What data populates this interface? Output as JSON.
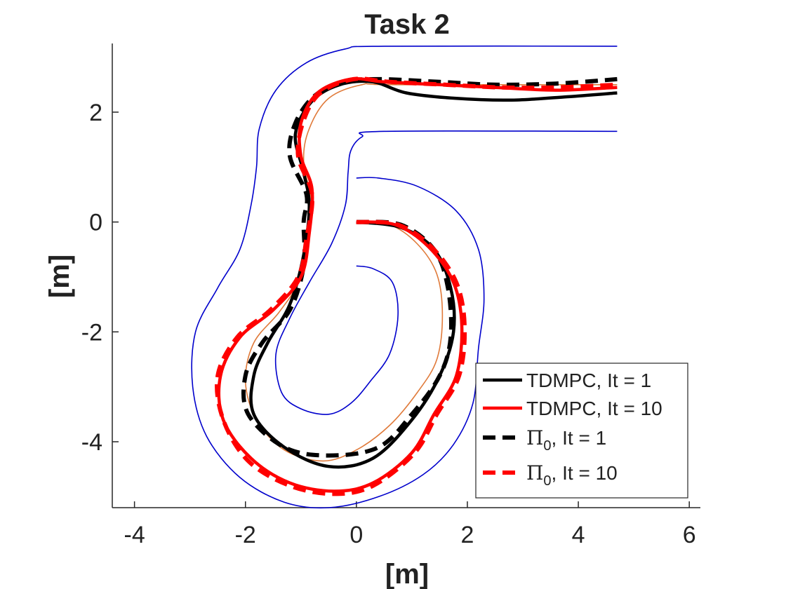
{
  "chart_data": {
    "type": "line",
    "title": "Task 2",
    "xlabel": "[m]",
    "ylabel": "[m]",
    "xlim": [
      -4.4,
      6.2
    ],
    "ylim": [
      -5.2,
      3.25
    ],
    "xticks": [
      -4,
      -2,
      0,
      2,
      4,
      6
    ],
    "yticks": [
      -4,
      -2,
      0,
      2
    ],
    "grid": false,
    "legend_position": "bottom-right",
    "track": {
      "color": "#0000cc",
      "outer": [
        [
          4.7,
          3.2
        ],
        [
          0.5,
          3.2
        ],
        [
          -0.2,
          3.15
        ],
        [
          -0.9,
          2.9
        ],
        [
          -1.45,
          2.4
        ],
        [
          -1.75,
          1.7
        ],
        [
          -1.8,
          1.0
        ],
        [
          -1.9,
          0.3
        ],
        [
          -2.1,
          -0.5
        ],
        [
          -2.5,
          -1.2
        ],
        [
          -2.9,
          -2.0
        ],
        [
          -2.95,
          -3.0
        ],
        [
          -2.7,
          -3.9
        ],
        [
          -2.1,
          -4.65
        ],
        [
          -1.3,
          -5.1
        ],
        [
          -0.5,
          -5.2
        ],
        [
          0.4,
          -5.0
        ],
        [
          1.2,
          -4.6
        ],
        [
          1.75,
          -4.05
        ],
        [
          2.1,
          -3.3
        ],
        [
          2.2,
          -2.3
        ],
        [
          2.3,
          -1.4
        ],
        [
          2.2,
          -0.5
        ],
        [
          1.8,
          0.2
        ],
        [
          1.1,
          0.65
        ],
        [
          0.4,
          0.8
        ],
        [
          0.0,
          0.8
        ]
      ],
      "inner_top": [
        [
          4.7,
          1.65
        ],
        [
          0.5,
          1.65
        ],
        [
          0.1,
          1.55
        ],
        [
          -0.1,
          1.3
        ],
        [
          -0.15,
          0.9
        ],
        [
          -0.2,
          0.3
        ],
        [
          -0.45,
          -0.4
        ],
        [
          -0.85,
          -1.1
        ],
        [
          -1.2,
          -1.75
        ],
        [
          -1.45,
          -2.4
        ],
        [
          -1.35,
          -3.1
        ],
        [
          -1.0,
          -3.4
        ],
        [
          -0.5,
          -3.5
        ],
        [
          -0.1,
          -3.3
        ],
        [
          0.25,
          -2.9
        ],
        [
          0.6,
          -2.4
        ],
        [
          0.75,
          -1.7
        ],
        [
          0.65,
          -1.1
        ],
        [
          0.3,
          -0.85
        ],
        [
          0.0,
          -0.8
        ]
      ]
    },
    "centerline": {
      "color": "#e07a3a",
      "points": [
        [
          0.0,
          0.0
        ],
        [
          0.6,
          -0.05
        ],
        [
          1.1,
          -0.4
        ],
        [
          1.45,
          -0.95
        ],
        [
          1.55,
          -1.7
        ],
        [
          1.45,
          -2.5
        ],
        [
          1.1,
          -3.1
        ],
        [
          0.6,
          -3.7
        ],
        [
          0.0,
          -4.15
        ],
        [
          -0.6,
          -4.35
        ],
        [
          -1.3,
          -4.15
        ],
        [
          -1.8,
          -3.6
        ],
        [
          -2.0,
          -2.9
        ],
        [
          -1.85,
          -2.2
        ],
        [
          -1.4,
          -1.65
        ],
        [
          -1.05,
          -1.1
        ],
        [
          -0.9,
          -0.4
        ],
        [
          -0.8,
          0.3
        ],
        [
          -0.95,
          1.1
        ],
        [
          -0.85,
          1.7
        ],
        [
          -0.5,
          2.25
        ],
        [
          0.1,
          2.5
        ],
        [
          0.7,
          2.5
        ],
        [
          4.7,
          2.5
        ]
      ]
    },
    "series": [
      {
        "name": "TDMPC, It = 1",
        "color": "#000000",
        "style": "solid",
        "points": [
          [
            0.0,
            0.0
          ],
          [
            0.8,
            -0.1
          ],
          [
            1.4,
            -0.5
          ],
          [
            1.7,
            -1.2
          ],
          [
            1.75,
            -2.0
          ],
          [
            1.5,
            -2.8
          ],
          [
            1.0,
            -3.6
          ],
          [
            0.3,
            -4.3
          ],
          [
            -0.5,
            -4.45
          ],
          [
            -1.3,
            -4.1
          ],
          [
            -1.85,
            -3.5
          ],
          [
            -1.85,
            -2.8
          ],
          [
            -1.6,
            -2.2
          ],
          [
            -1.2,
            -1.5
          ],
          [
            -0.95,
            -0.6
          ],
          [
            -0.85,
            0.3
          ],
          [
            -0.95,
            0.9
          ],
          [
            -1.1,
            1.6
          ],
          [
            -0.8,
            2.2
          ],
          [
            -0.3,
            2.5
          ],
          [
            0.3,
            2.55
          ],
          [
            0.9,
            2.35
          ],
          [
            1.8,
            2.25
          ],
          [
            2.8,
            2.22
          ],
          [
            3.8,
            2.28
          ],
          [
            4.7,
            2.35
          ]
        ]
      },
      {
        "name": "TDMPC, It = 10",
        "color": "#ff0000",
        "style": "solid",
        "points": [
          [
            0.0,
            0.0
          ],
          [
            0.7,
            -0.05
          ],
          [
            1.3,
            -0.45
          ],
          [
            1.75,
            -1.1
          ],
          [
            1.9,
            -1.9
          ],
          [
            1.8,
            -2.8
          ],
          [
            1.4,
            -3.5
          ],
          [
            1.0,
            -4.2
          ],
          [
            0.3,
            -4.75
          ],
          [
            -0.4,
            -4.9
          ],
          [
            -1.2,
            -4.75
          ],
          [
            -1.9,
            -4.3
          ],
          [
            -2.4,
            -3.6
          ],
          [
            -2.45,
            -2.8
          ],
          [
            -2.1,
            -2.1
          ],
          [
            -1.5,
            -1.6
          ],
          [
            -1.0,
            -1.0
          ],
          [
            -0.85,
            -0.2
          ],
          [
            -0.8,
            0.6
          ],
          [
            -1.0,
            1.2
          ],
          [
            -1.0,
            1.8
          ],
          [
            -0.7,
            2.35
          ],
          [
            -0.1,
            2.6
          ],
          [
            0.5,
            2.55
          ],
          [
            1.5,
            2.5
          ],
          [
            2.5,
            2.45
          ],
          [
            3.6,
            2.4
          ],
          [
            4.7,
            2.45
          ]
        ]
      },
      {
        "name_parts": [
          "Π",
          "0",
          ", It = 1"
        ],
        "color": "#000000",
        "style": "dashed",
        "points": [
          [
            0.0,
            0.0
          ],
          [
            0.8,
            -0.05
          ],
          [
            1.4,
            -0.5
          ],
          [
            1.65,
            -1.2
          ],
          [
            1.7,
            -2.1
          ],
          [
            1.5,
            -2.8
          ],
          [
            1.0,
            -3.5
          ],
          [
            0.4,
            -4.1
          ],
          [
            -0.5,
            -4.25
          ],
          [
            -1.3,
            -4.1
          ],
          [
            -1.95,
            -3.5
          ],
          [
            -2.0,
            -2.8
          ],
          [
            -1.7,
            -2.2
          ],
          [
            -1.2,
            -1.6
          ],
          [
            -0.95,
            -0.8
          ],
          [
            -0.95,
            0.0
          ],
          [
            -0.9,
            0.5
          ],
          [
            -1.2,
            1.2
          ],
          [
            -1.1,
            1.8
          ],
          [
            -0.75,
            2.3
          ],
          [
            -0.2,
            2.55
          ],
          [
            0.4,
            2.6
          ],
          [
            1.5,
            2.55
          ],
          [
            2.5,
            2.5
          ],
          [
            3.6,
            2.52
          ],
          [
            4.7,
            2.6
          ]
        ]
      },
      {
        "name_parts": [
          "Π",
          "0",
          ", It = 10"
        ],
        "color": "#ff0000",
        "style": "dashed",
        "points": [
          [
            0.0,
            0.0
          ],
          [
            0.75,
            -0.05
          ],
          [
            1.35,
            -0.45
          ],
          [
            1.8,
            -1.1
          ],
          [
            1.95,
            -1.9
          ],
          [
            1.85,
            -2.8
          ],
          [
            1.45,
            -3.5
          ],
          [
            1.05,
            -4.2
          ],
          [
            0.3,
            -4.8
          ],
          [
            -0.4,
            -4.95
          ],
          [
            -1.2,
            -4.8
          ],
          [
            -1.95,
            -4.35
          ],
          [
            -2.4,
            -3.6
          ],
          [
            -2.5,
            -2.8
          ],
          [
            -2.15,
            -2.1
          ],
          [
            -1.55,
            -1.6
          ],
          [
            -1.05,
            -1.0
          ],
          [
            -0.9,
            -0.3
          ],
          [
            -0.8,
            0.5
          ],
          [
            -1.05,
            1.2
          ],
          [
            -0.95,
            1.85
          ],
          [
            -0.65,
            2.35
          ],
          [
            -0.05,
            2.6
          ],
          [
            0.6,
            2.55
          ],
          [
            1.6,
            2.5
          ],
          [
            2.6,
            2.45
          ],
          [
            3.6,
            2.45
          ],
          [
            4.7,
            2.5
          ]
        ]
      }
    ]
  }
}
